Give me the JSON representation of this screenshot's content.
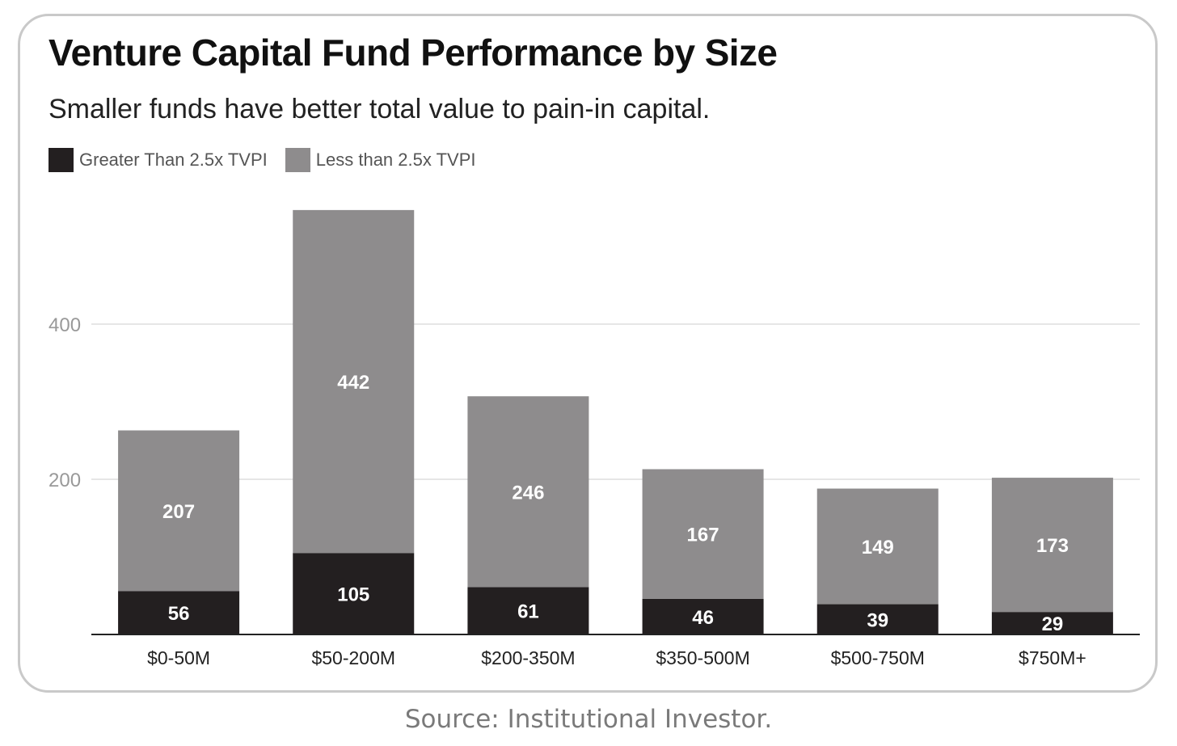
{
  "chart_data": {
    "type": "bar",
    "stacked": true,
    "title": "Venture Capital Fund Performance by Size",
    "subtitle": "Smaller funds have better total value to pain-in capital.",
    "categories": [
      "$0-50M",
      "$50-200M",
      "$200-350M",
      "$350-500M",
      "$500-750M",
      "$750M+"
    ],
    "series": [
      {
        "name": "Greater Than 2.5x TVPI",
        "values": [
          56,
          105,
          61,
          46,
          39,
          29
        ],
        "color": "#231f20"
      },
      {
        "name": "Less than 2.5x TVPI",
        "values": [
          207,
          442,
          246,
          167,
          149,
          173
        ],
        "color": "#8e8c8d"
      }
    ],
    "yticks": [
      200,
      400
    ],
    "ylim": [
      0,
      600
    ],
    "grid": true,
    "legend_position": "top-left",
    "label_color": "#ffffff",
    "tick_color": "#999999",
    "grid_color": "#e6e6e6",
    "axis_color": "#222222"
  },
  "source": "Source: Institutional Investor."
}
